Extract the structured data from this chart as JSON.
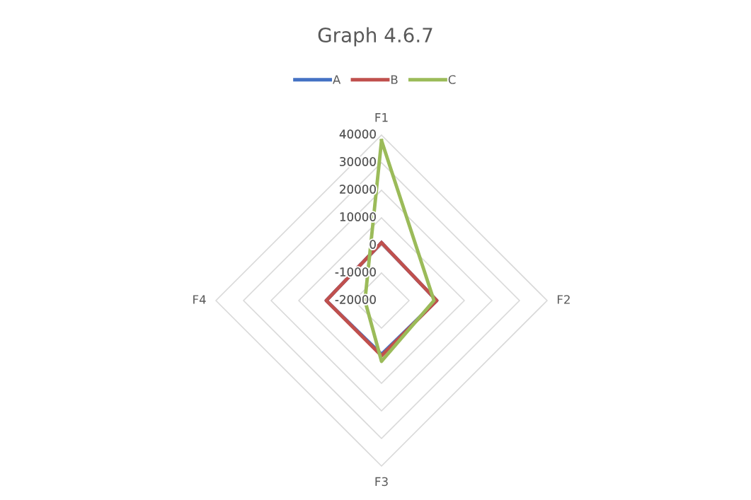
{
  "chart_data": {
    "type": "radar",
    "title": "Graph 4.6.7",
    "categories": [
      "F1",
      "F2",
      "F3",
      "F4"
    ],
    "series": [
      {
        "name": "A",
        "color": "#4472c4",
        "values": [
          1000,
          0,
          -500,
          0
        ]
      },
      {
        "name": "B",
        "color": "#c0504d",
        "values": [
          1000,
          0,
          0,
          0
        ]
      },
      {
        "name": "C",
        "color": "#9bbb59",
        "values": [
          38000,
          -1000,
          2000,
          -14000
        ]
      }
    ],
    "ylim": [
      -20000,
      40000
    ],
    "yticks": [
      -20000,
      -10000,
      0,
      10000,
      20000,
      30000,
      40000
    ],
    "grid": true,
    "legend": "top"
  }
}
